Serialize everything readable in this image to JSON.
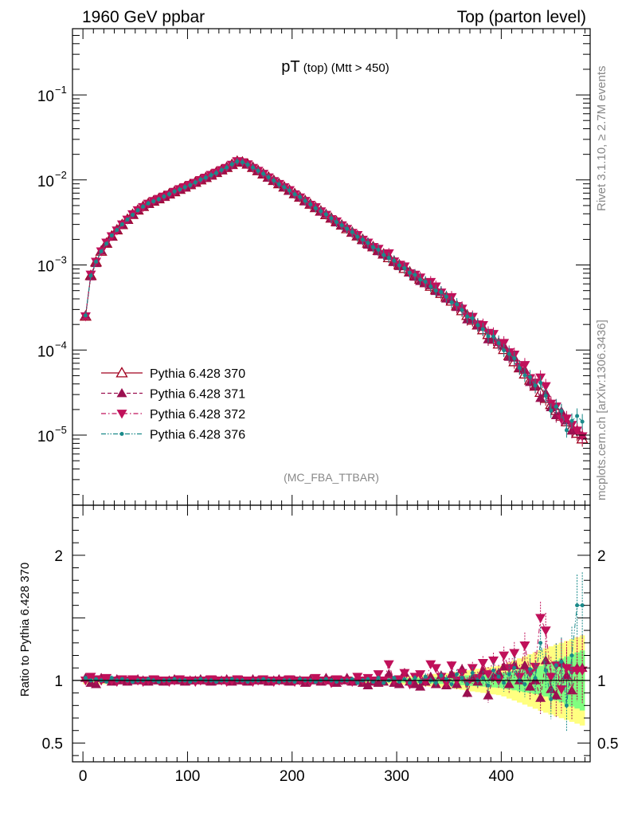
{
  "header": {
    "left": "1960 GeV ppbar",
    "right": "Top (parton level)"
  },
  "title": {
    "main": "pT",
    "sub1": " (top)",
    "sub2": " (Mtt > 450)"
  },
  "side_labels": {
    "rivet": "Rivet 3.1.10, ≥ 2.7M events",
    "mcplots": "mcplots.cern.ch [arXiv:1306.3436]"
  },
  "watermark": "(MC_FBA_TTBAR)",
  "colors": {
    "s370": "#a0001e",
    "s371": "#9b1050",
    "s372": "#c0105a",
    "s376": "#1a8a8a",
    "band_yellow": "#ffff80",
    "band_green": "#80ff80"
  },
  "chart_data": {
    "type": "scatter",
    "x_axis": {
      "range": [
        -10,
        485
      ],
      "ticks": [
        0,
        100,
        200,
        300,
        400
      ],
      "tick_labels": [
        "0",
        "100",
        "200",
        "300",
        "400"
      ]
    },
    "main_panel": {
      "y_scale": "log",
      "y_range": [
        1.5e-06,
        0.6
      ],
      "y_ticks": [
        {
          "exp": -1,
          "label": "10",
          "sup": "−1"
        },
        {
          "exp": -2,
          "label": "10",
          "sup": "−2"
        },
        {
          "exp": -3,
          "label": "10",
          "sup": "−3"
        },
        {
          "exp": -4,
          "label": "10",
          "sup": "−4"
        },
        {
          "exp": -5,
          "label": "10",
          "sup": "−5"
        }
      ],
      "curve_knots_x": [
        2.5,
        7.5,
        15,
        22.5,
        30,
        40,
        50,
        60,
        80,
        100,
        120,
        140,
        147.5,
        155,
        200,
        250,
        300,
        350,
        400,
        450,
        477.5
      ],
      "curve_knots_y": [
        0.00025,
        0.00075,
        0.0013,
        0.0018,
        0.0024,
        0.0032,
        0.0042,
        0.0051,
        0.0066,
        0.0085,
        0.011,
        0.0145,
        0.0165,
        0.016,
        0.0072,
        0.0028,
        0.00105,
        0.0004,
        0.00011,
        2.1e-05,
        9e-06
      ]
    },
    "ratio_panel": {
      "ylabel": "Ratio to Pythia 6.428 370",
      "y_range": [
        0.35,
        2.4
      ],
      "y_ticks": [
        0.5,
        1,
        2
      ],
      "y_tick_labels": [
        "0.5",
        "1",
        "2"
      ]
    },
    "series": [
      {
        "id": "s370",
        "name": "Pythia 6.428 370",
        "marker": "triangle-up-open",
        "line": "solid",
        "ratio": [
          1.0
        ]
      },
      {
        "id": "s371",
        "name": "Pythia 6.428 371",
        "marker": "triangle-up",
        "line": "dashed",
        "ratio": [
          1.02,
          0.98,
          0.97,
          1.02,
          1.01,
          0.99,
          1.01,
          1.0,
          0.99,
          1.0,
          1.01,
          1.0,
          0.99,
          1.0,
          1.0,
          0.99,
          1.0,
          1.01,
          1.0,
          0.99,
          1.0,
          1.0,
          1.01,
          1.0,
          0.99,
          1.0,
          1.0,
          1.01,
          0.99,
          1.0,
          1.0,
          0.99,
          1.01,
          1.0,
          1.0,
          0.99,
          1.0,
          1.01,
          1.0,
          0.99,
          1.0,
          1.0,
          0.98,
          1.01,
          1.0,
          0.99,
          1.02,
          1.0,
          0.98,
          1.0,
          1.02,
          0.99,
          1.0,
          0.98,
          0.96,
          0.99,
          0.98,
          0.99,
          1.05,
          0.98,
          0.97,
          1.06,
          0.99,
          0.97,
          0.95,
          0.99,
          1.03,
          0.97,
          1.04,
          0.96,
          1.05,
          0.97,
          1.09,
          0.9,
          1.02,
          0.99,
          1.08,
          0.88,
          1.03,
          1.06,
          1.11,
          0.97,
          1.12,
          1.0,
          1.12,
          0.95,
          1.0,
          0.86,
          1.16,
          0.93,
          0.88,
          1.14,
          1.04,
          0.92,
          1.1
        ]
      },
      {
        "id": "s372",
        "name": "Pythia 6.428 372",
        "marker": "triangle-down",
        "line": "dashdot",
        "ratio": [
          1.0,
          1.03,
          1.01,
          1.0,
          1.02,
          1.0,
          0.99,
          1.01,
          1.0,
          1.01,
          1.0,
          0.99,
          1.0,
          1.01,
          1.0,
          1.0,
          0.99,
          1.0,
          1.01,
          1.0,
          1.0,
          0.99,
          1.0,
          1.0,
          1.01,
          1.0,
          1.0,
          0.99,
          1.0,
          1.01,
          1.0,
          1.0,
          0.99,
          1.0,
          1.01,
          1.0,
          0.99,
          1.0,
          1.0,
          1.01,
          0.99,
          1.0,
          1.0,
          0.99,
          1.02,
          1.0,
          1.0,
          0.98,
          1.01,
          1.0,
          1.0,
          0.99,
          1.03,
          1.0,
          1.02,
          1.0,
          1.05,
          1.0,
          1.13,
          1.0,
          1.01,
          1.06,
          0.97,
          1.03,
          1.05,
          0.99,
          1.13,
          1.1,
          1.03,
          0.98,
          1.12,
          1.0,
          1.06,
          0.98,
          1.1,
          1.02,
          1.14,
          1.05,
          1.16,
          1.0,
          1.2,
          1.1,
          1.22,
          1.03,
          1.28,
          1.06,
          1.11,
          1.5,
          1.4,
          1.03,
          1.12,
          0.93,
          1.1,
          1.08,
          1.08
        ]
      },
      {
        "id": "s376",
        "name": "Pythia 6.428 376",
        "marker": "dot",
        "line": "dashdotdot",
        "ratio": [
          1.02,
          1.0,
          1.01,
          1.0,
          0.99,
          1.02,
          1.0,
          1.01,
          1.0,
          0.99,
          1.0,
          1.0,
          1.01,
          1.0,
          0.99,
          1.0,
          1.0,
          1.01,
          1.0,
          1.0,
          0.99,
          1.0,
          1.01,
          1.0,
          1.0,
          0.99,
          1.0,
          1.0,
          1.01,
          1.0,
          1.0,
          0.99,
          1.0,
          1.0,
          1.01,
          1.0,
          1.0,
          0.99,
          1.0,
          1.0,
          0.99,
          1.01,
          1.0,
          1.0,
          0.99,
          1.0,
          1.01,
          1.0,
          0.99,
          1.0,
          1.0,
          1.01,
          0.98,
          1.0,
          1.01,
          0.99,
          1.02,
          0.98,
          1.0,
          1.02,
          0.99,
          1.01,
          0.98,
          1.02,
          0.99,
          1.03,
          1.0,
          0.98,
          1.04,
          1.01,
          0.97,
          1.05,
          1.02,
          0.97,
          1.06,
          1.0,
          1.02,
          0.96,
          1.08,
          1.03,
          0.98,
          1.05,
          1.1,
          1.0,
          0.97,
          1.09,
          1.02,
          1.3,
          1.08,
          0.85,
          1.12,
          1.15,
          0.8,
          1.2,
          1.6
        ]
      }
    ],
    "ratio_band_halfwidth": {
      "x_knots": [
        0,
        250,
        300,
        350,
        400,
        440,
        477.5
      ],
      "yellow": [
        0.03,
        0.02,
        0.03,
        0.06,
        0.12,
        0.25,
        0.36
      ],
      "green": [
        0.015,
        0.01,
        0.015,
        0.03,
        0.06,
        0.12,
        0.24
      ]
    }
  }
}
